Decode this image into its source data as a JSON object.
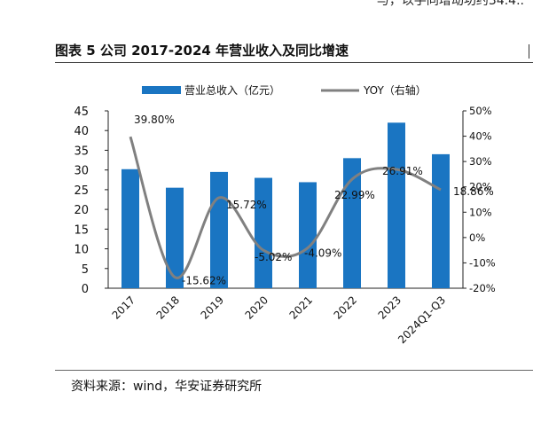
{
  "page_top_text": "与，以手同增动功约34.4..",
  "figure": {
    "title": "图表 5 公司 2017-2024 年营业收入及同比增速",
    "source": "资料来源：wind，华安证券研究所"
  },
  "chart_data": {
    "type": "bar",
    "categories": [
      "2017",
      "2018",
      "2019",
      "2020",
      "2021",
      "2022",
      "2023",
      "2024Q1-Q3"
    ],
    "series": [
      {
        "name": "营业总收入（亿元）",
        "type": "bar",
        "axis": "left",
        "values": [
          30.2,
          25.5,
          29.5,
          28.0,
          26.9,
          33.0,
          42.0,
          34.0
        ],
        "color": "#1a75c2"
      },
      {
        "name": "YOY（右轴）",
        "type": "line",
        "axis": "right",
        "smooth": true,
        "values": [
          39.8,
          -15.62,
          15.72,
          -5.02,
          -4.09,
          22.99,
          26.91,
          18.86
        ],
        "color": "#808080"
      }
    ],
    "data_labels": [
      "39.80%",
      "-15.62%",
      "15.72%",
      "-5.02%",
      "-4.09%",
      "22.99%",
      "26.91%",
      "18.86%"
    ],
    "y_left": {
      "min": 0,
      "max": 45,
      "step": 5,
      "ticks": [
        "0",
        "5",
        "10",
        "15",
        "20",
        "25",
        "30",
        "35",
        "40",
        "45"
      ]
    },
    "y_right": {
      "min": -20,
      "max": 50,
      "step": 10,
      "ticks": [
        "-20%",
        "-10%",
        "0%",
        "10%",
        "20%",
        "30%",
        "40%",
        "50%"
      ]
    },
    "legend": {
      "position": "top"
    },
    "grid": false
  }
}
